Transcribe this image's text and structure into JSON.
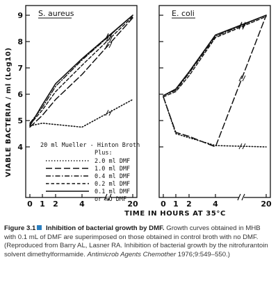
{
  "chart_data": [
    {
      "type": "line",
      "title": "S. aureus",
      "ylabel": "VIABLE BACTERIA / ml (Log10)",
      "ylim": [
        4,
        9.25
      ],
      "y_ticks": [
        "4",
        "5",
        "6",
        "7",
        "8",
        "9"
      ],
      "xlabel": "TIME IN HOURS AT 35°C",
      "x_ticks": [
        "0",
        "1",
        "2",
        "4",
        "20"
      ],
      "legend": {
        "header_line1": "20 ml Mueller - Hinton Broth",
        "header_line2": "Plus:",
        "entries": [
          "2.0 ml DMF",
          "1.0 ml DMF",
          "0.4 ml DMF",
          "0.2 ml DMF",
          "0.1 ml DMF",
          "or NO DMF"
        ]
      },
      "series": [
        {
          "name": "2.0 ml DMF",
          "style": "dotted",
          "x": [
            0,
            1,
            2,
            4,
            20
          ],
          "y": [
            4.8,
            4.9,
            4.85,
            4.75,
            5.8
          ]
        },
        {
          "name": "1.0 ml DMF",
          "style": "long-dash",
          "x": [
            0,
            1,
            2,
            4,
            20
          ],
          "y": [
            4.75,
            5.2,
            5.8,
            6.75,
            8.9
          ]
        },
        {
          "name": "0.4 ml DMF",
          "style": "dash-dot",
          "x": [
            0,
            1,
            2,
            4,
            20
          ],
          "y": [
            4.9,
            5.5,
            6.3,
            7.3,
            9.0
          ]
        },
        {
          "name": "0.2 ml DMF",
          "style": "dashed",
          "x": [
            0,
            1,
            2,
            4,
            20
          ],
          "y": [
            4.85,
            5.4,
            6.1,
            7.1,
            8.95
          ]
        },
        {
          "name": "0.1 ml DMF or NO DMF",
          "style": "solid",
          "x": [
            0,
            1,
            2,
            4,
            20
          ],
          "y": [
            4.8,
            5.6,
            6.4,
            7.35,
            9.0
          ]
        }
      ]
    },
    {
      "type": "line",
      "title": "E. coli",
      "ylim": [
        4,
        9.25
      ],
      "x_ticks": [
        "0",
        "1",
        "2",
        "4",
        "20"
      ],
      "series": [
        {
          "name": "2.0 ml DMF",
          "style": "dotted",
          "x": [
            0,
            1,
            2,
            4,
            20
          ],
          "y": [
            5.9,
            4.5,
            4.35,
            4.05,
            4.0
          ]
        },
        {
          "name": "1.0 ml DMF",
          "style": "long-dash",
          "x": [
            0,
            1,
            2,
            4,
            20
          ],
          "y": [
            5.9,
            4.55,
            4.4,
            4.0,
            9.0
          ]
        },
        {
          "name": "0.4 ml DMF",
          "style": "dash-dot",
          "x": [
            0,
            1,
            2,
            4,
            20
          ],
          "y": [
            5.95,
            6.15,
            6.8,
            8.2,
            9.0
          ]
        },
        {
          "name": "0.2 ml DMF",
          "style": "dashed",
          "x": [
            0,
            1,
            2,
            4,
            20
          ],
          "y": [
            5.9,
            6.1,
            6.7,
            8.15,
            8.95
          ]
        },
        {
          "name": "0.1 ml DMF or NO DMF",
          "style": "solid",
          "x": [
            0,
            1,
            2,
            4,
            20
          ],
          "y": [
            5.95,
            6.2,
            6.85,
            8.25,
            9.0
          ]
        }
      ]
    }
  ],
  "caption": {
    "figure_label": "Figure 3.1",
    "figure_title": "Inhibition of bacterial growth by DMF.",
    "text_part1": "Growth curves obtained in MHB with 0.1 mL of DMF are superimposed on those obtained in control broth with no DMF. (Reproduced from Barry AL, Lasner RA. Inhibition of bacterial growth by the nitrofurantoin solvent dimethylformamide.",
    "journal": "Antimicrob Agents Chemother",
    "text_part2": "1976;9:549–550.)",
    "accent_color": "#2a7fc1"
  }
}
